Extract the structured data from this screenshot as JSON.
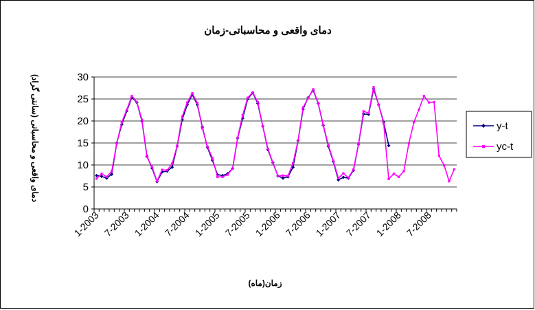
{
  "chart_data": {
    "type": "line",
    "title": "دمای واقعی و محاسباتی-زمان",
    "xlabel": "زمان(ماه)",
    "ylabel": "دمای واقعی و محاسباتی (سانتی گراد)",
    "ylim": [
      0,
      30
    ],
    "yticks": [
      0,
      5,
      10,
      15,
      20,
      25,
      30
    ],
    "grid": true,
    "legend_position": "right",
    "x_tick_labels": [
      "1-2003",
      "7-2003",
      "1-2004",
      "7-2004",
      "1-2005",
      "7-2005",
      "1-2006",
      "7-2006",
      "1-2007",
      "7-2007",
      "1-2008",
      "7-2008"
    ],
    "x_months_total": 72,
    "series": [
      {
        "name": "y-t",
        "color": "#000080",
        "marker": "diamond",
        "start_month": 0,
        "values": [
          7.6,
          7.4,
          7.0,
          7.9,
          15.0,
          19.2,
          22.3,
          25.4,
          24.2,
          20.0,
          12.0,
          9.3,
          6.2,
          8.4,
          8.6,
          9.5,
          14.3,
          20.3,
          23.7,
          26.0,
          23.7,
          18.6,
          14.0,
          11.1,
          7.8,
          7.6,
          8.0,
          9.2,
          16.1,
          20.6,
          25.0,
          26.4,
          24.0,
          18.8,
          13.5,
          10.5,
          7.5,
          7.0,
          7.3,
          9.5,
          15.5,
          22.7,
          25.3,
          27.0,
          24.0,
          19.0,
          14.3,
          10.8,
          6.6,
          7.2,
          7.0,
          8.8,
          14.7,
          21.6,
          21.5,
          27.3,
          23.7,
          19.7,
          14.4
        ]
      },
      {
        "name": "yc-t",
        "color": "#FF00FF",
        "marker": "square",
        "start_month": 0,
        "values": [
          6.9,
          8.0,
          7.3,
          8.6,
          14.9,
          19.7,
          22.6,
          25.7,
          24.3,
          20.3,
          11.8,
          9.6,
          6.3,
          8.9,
          8.8,
          10.3,
          14.4,
          21.0,
          24.2,
          26.3,
          24.1,
          18.3,
          14.2,
          11.6,
          7.3,
          7.3,
          7.8,
          9.2,
          16.2,
          21.3,
          25.3,
          26.5,
          24.3,
          18.8,
          13.7,
          10.6,
          7.5,
          7.6,
          7.5,
          10.4,
          15.6,
          23.1,
          25.2,
          27.2,
          24.1,
          19.1,
          14.6,
          11.0,
          7.0,
          8.1,
          7.1,
          9.0,
          14.7,
          22.2,
          21.8,
          27.7,
          23.7,
          19.4,
          6.8,
          8.0,
          7.3,
          8.6,
          14.9,
          19.7,
          22.6,
          25.7,
          24.2,
          24.3,
          12.1,
          9.9,
          6.3,
          9.0
        ]
      }
    ]
  }
}
